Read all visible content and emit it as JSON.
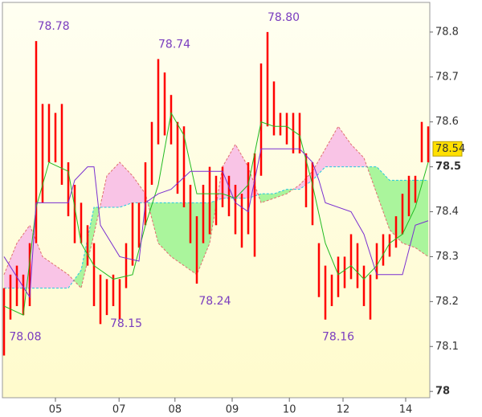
{
  "chart_data": {
    "type": "candlestick",
    "xlim": [
      -0.25,
      66.25
    ],
    "ylim": [
      77.986,
      78.866
    ],
    "yticks": [
      78.8,
      78.7,
      78.6,
      78.5,
      78.4,
      78.3,
      78.2,
      78.1,
      78
    ],
    "xticks": [
      {
        "value": 8,
        "label": "05"
      },
      {
        "value": 17.9,
        "label": "07"
      },
      {
        "value": 26.6,
        "label": "08"
      },
      {
        "value": 35.5,
        "label": "09"
      },
      {
        "value": 44.4,
        "label": "10"
      },
      {
        "value": 52.75,
        "label": "12"
      },
      {
        "value": 62.5,
        "label": "14"
      }
    ],
    "bars": {
      "color": "#ff0000",
      "high": [
        78.23,
        78.26,
        78.28,
        78.26,
        78.33,
        78.78,
        78.64,
        78.64,
        78.62,
        78.64,
        78.51,
        78.46,
        78.42,
        78.37,
        78.33,
        78.26,
        78.25,
        78.26,
        78.25,
        78.33,
        78.42,
        78.42,
        78.51,
        78.6,
        78.74,
        78.71,
        78.66,
        78.6,
        78.59,
        78.46,
        78.39,
        78.46,
        78.5,
        78.48,
        78.5,
        78.48,
        78.46,
        78.44,
        78.51,
        78.53,
        78.73,
        78.8,
        78.69,
        78.62,
        78.62,
        78.62,
        78.62,
        78.53,
        78.51,
        78.33,
        78.28,
        78.26,
        78.3,
        78.3,
        78.35,
        78.33,
        78.28,
        78.26,
        78.33,
        78.35,
        78.35,
        78.39,
        78.44,
        78.48,
        78.48,
        78.6,
        78.59
      ],
      "low": [
        78.08,
        78.16,
        78.19,
        78.17,
        78.19,
        78.33,
        78.42,
        78.51,
        78.51,
        78.46,
        78.39,
        78.33,
        78.33,
        78.28,
        78.19,
        78.15,
        78.17,
        78.19,
        78.16,
        78.23,
        78.28,
        78.32,
        78.37,
        78.46,
        78.55,
        78.57,
        78.55,
        78.44,
        78.41,
        78.33,
        78.24,
        78.33,
        78.35,
        78.37,
        78.41,
        78.39,
        78.35,
        78.32,
        78.35,
        78.3,
        78.48,
        78.59,
        78.57,
        78.57,
        78.55,
        78.53,
        78.53,
        78.41,
        78.37,
        78.21,
        78.16,
        78.19,
        78.21,
        78.23,
        78.25,
        78.23,
        78.19,
        78.16,
        78.25,
        78.28,
        78.3,
        78.32,
        78.35,
        78.39,
        78.42,
        78.51,
        78.51
      ]
    },
    "lines": [
      {
        "color": "#22bb22",
        "x": [
          0,
          3,
          5,
          7,
          10,
          12,
          14,
          17,
          20,
          22,
          24,
          26,
          28,
          30,
          32,
          34,
          36,
          38,
          40,
          42,
          44,
          46,
          48,
          50,
          52,
          54,
          56,
          58,
          60,
          62,
          64,
          66
        ],
        "values": [
          78.19,
          78.17,
          78.41,
          78.51,
          78.49,
          78.33,
          78.28,
          78.25,
          78.26,
          78.37,
          78.46,
          78.62,
          78.57,
          78.44,
          78.44,
          78.44,
          78.43,
          78.46,
          78.6,
          78.59,
          78.59,
          78.57,
          78.46,
          78.33,
          78.26,
          78.28,
          78.25,
          78.28,
          78.33,
          78.35,
          78.41,
          78.51
        ]
      },
      {
        "color": "#7a2fd0",
        "x": [
          0,
          4,
          5,
          10,
          11,
          13,
          14,
          15,
          18,
          21,
          22,
          24,
          26,
          29,
          34,
          36,
          38,
          40,
          46,
          48,
          49,
          50,
          54,
          56,
          58,
          62,
          64,
          66
        ],
        "values": [
          78.3,
          78.21,
          78.42,
          78.42,
          78.47,
          78.5,
          78.5,
          78.37,
          78.3,
          78.29,
          78.42,
          78.44,
          78.45,
          78.49,
          78.49,
          78.42,
          78.4,
          78.54,
          78.54,
          78.51,
          78.47,
          78.42,
          78.4,
          78.35,
          78.26,
          78.26,
          78.37,
          78.38
        ]
      }
    ],
    "cloud": {
      "x": [
        0,
        2,
        4,
        6,
        8,
        10,
        12,
        14,
        16,
        18,
        20,
        22,
        24,
        26,
        28,
        30,
        32,
        34,
        36,
        38,
        40,
        42,
        44,
        46,
        48,
        50,
        52,
        54,
        56,
        58,
        60,
        62,
        64,
        66
      ],
      "span_a": {
        "color": "#22c8e0",
        "values": [
          78.23,
          78.23,
          78.23,
          78.23,
          78.23,
          78.23,
          78.27,
          78.41,
          78.41,
          78.41,
          78.42,
          78.42,
          78.42,
          78.42,
          78.42,
          78.42,
          78.42,
          78.43,
          78.43,
          78.43,
          78.44,
          78.44,
          78.45,
          78.45,
          78.47,
          78.5,
          78.5,
          78.5,
          78.5,
          78.5,
          78.47,
          78.47,
          78.47,
          78.47
        ]
      },
      "span_b": {
        "color": "#e07070",
        "values": [
          78.26,
          78.33,
          78.37,
          78.3,
          78.28,
          78.26,
          78.23,
          78.35,
          78.48,
          78.51,
          78.48,
          78.44,
          78.33,
          78.3,
          78.28,
          78.26,
          78.33,
          78.5,
          78.55,
          78.5,
          78.42,
          78.43,
          78.44,
          78.46,
          78.49,
          78.54,
          78.59,
          78.55,
          78.52,
          78.44,
          78.36,
          78.33,
          78.32,
          78.3
        ]
      },
      "fill_b_above": "#f9c4e6",
      "fill_a_above": "#aaf59c"
    },
    "annotations": [
      {
        "text": "78.78",
        "x": 5.2,
        "at": "high"
      },
      {
        "text": "78.74",
        "x": 24,
        "at": "high"
      },
      {
        "text": "78.80",
        "x": 41,
        "at": "high"
      },
      {
        "text": "78.08",
        "x": 0.8,
        "at": "low"
      },
      {
        "text": "78.15",
        "x": 16.5,
        "at": "low"
      },
      {
        "text": "78.24",
        "x": 30.3,
        "at": "low"
      },
      {
        "text": "78.16",
        "x": 49.5,
        "at": "low"
      }
    ],
    "last_price": 78.54
  }
}
